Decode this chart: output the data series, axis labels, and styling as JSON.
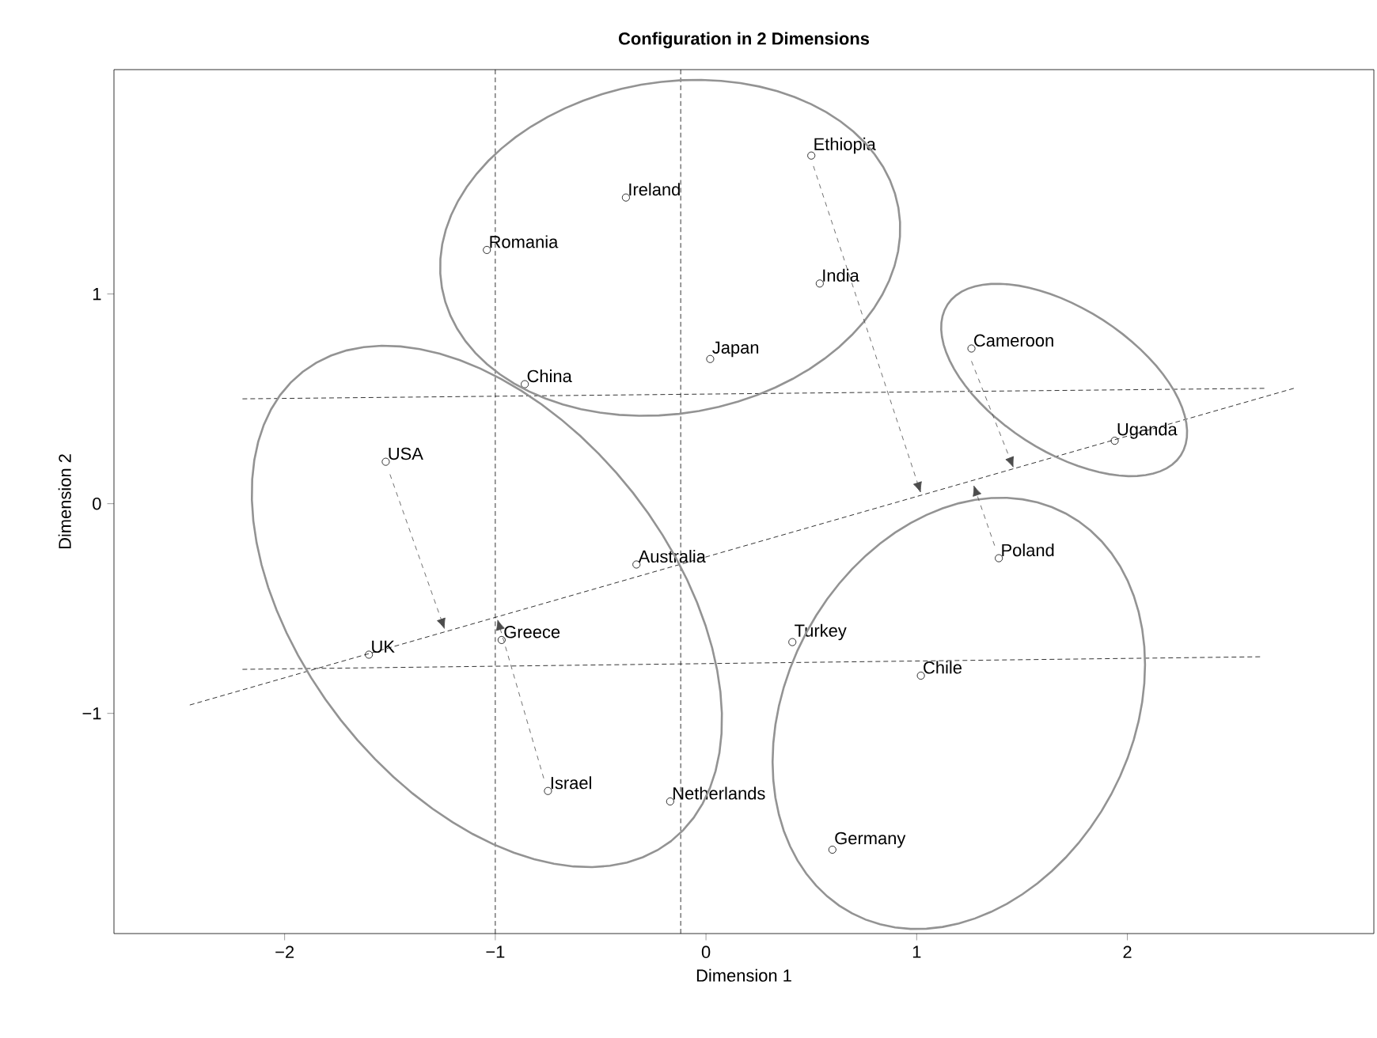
{
  "chart_data": {
    "type": "scatter",
    "title": "**Configuration in 2 Dimensions**",
    "xlabel": "Dimension 1",
    "ylabel": "Dimension 2",
    "xlim": [
      -2.81,
      3.17
    ],
    "ylim": [
      -2.05,
      2.07
    ],
    "xticks": [
      {
        "value": -2,
        "label": "−2"
      },
      {
        "value": -1,
        "label": "−1"
      },
      0,
      1,
      2
    ],
    "yticks": [
      {
        "value": -1,
        "label": "−1"
      },
      0,
      1
    ],
    "marker": "circle",
    "ref_lines": [
      {
        "axis": "x",
        "value": -1,
        "color": "#000000",
        "line_style": "dashed"
      },
      {
        "axis": "x",
        "value": -0.12,
        "color": "#000000",
        "line_style": "dashed"
      }
    ],
    "series": [
      {
        "color": "#000000",
        "x": [
          0.5,
          -0.38,
          -1.04,
          0.54,
          1.26,
          0.02,
          -0.86,
          1.94,
          -1.52,
          -0.33,
          1.39,
          -0.97,
          -1.6,
          0.41,
          1.02,
          -0.75,
          -0.17,
          0.6
        ],
        "values": [
          1.66,
          1.46,
          1.21,
          1.05,
          0.74,
          0.69,
          0.57,
          0.3,
          0.2,
          -0.29,
          -0.26,
          -0.65,
          -0.72,
          -0.66,
          -0.82,
          -1.37,
          -1.42,
          -1.65
        ]
      },
      {
        "type": "line",
        "color": "#000000",
        "line_style": "dashed",
        "marker": "none",
        "x": [
          -2.45,
          2.79
        ],
        "values": [
          -0.96,
          0.55
        ]
      },
      {
        "type": "line",
        "color": "#000000",
        "line_style": "dashed",
        "marker": "none",
        "x": [
          -2.2,
          2.65
        ],
        "values": [
          0.5,
          0.55
        ]
      },
      {
        "type": "line",
        "color": "#000000",
        "line_style": "dashed",
        "marker": "none",
        "x": [
          -2.2,
          2.63
        ],
        "values": [
          -0.79,
          -0.73
        ]
      }
    ],
    "annotations": [
      {
        "text": "Ethiopia",
        "x": 0.5,
        "y": 1.66
      },
      {
        "text": "Ireland",
        "x": -0.38,
        "y": 1.46
      },
      {
        "text": "Romania",
        "x": -1.04,
        "y": 1.21
      },
      {
        "text": "India",
        "x": 0.54,
        "y": 1.05
      },
      {
        "text": "Cameroon",
        "x": 1.26,
        "y": 0.74
      },
      {
        "text": "Japan",
        "x": 0.02,
        "y": 0.69
      },
      {
        "text": "China",
        "x": -0.86,
        "y": 0.57
      },
      {
        "text": "Uganda",
        "x": 1.94,
        "y": 0.3
      },
      {
        "text": "USA",
        "x": -1.52,
        "y": 0.2
      },
      {
        "text": "Australia",
        "x": -0.33,
        "y": -0.29
      },
      {
        "text": "Poland",
        "x": 1.39,
        "y": -0.26
      },
      {
        "text": "Greece",
        "x": -0.97,
        "y": -0.65
      },
      {
        "text": "UK",
        "x": -1.6,
        "y": -0.72
      },
      {
        "text": "Turkey",
        "x": 0.41,
        "y": -0.66
      },
      {
        "text": "Chile",
        "x": 1.02,
        "y": -0.82
      },
      {
        "text": "Israel",
        "x": -0.75,
        "y": -1.37
      },
      {
        "text": "Netherlands",
        "x": -0.17,
        "y": -1.42
      },
      {
        "text": "Germany",
        "x": 0.6,
        "y": -1.65
      }
    ]
  }
}
